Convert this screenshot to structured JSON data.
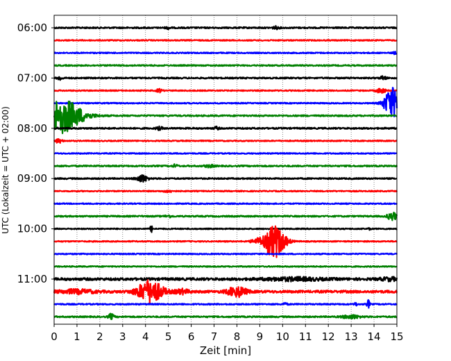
{
  "chart_data": {
    "type": "line",
    "subtype": "helicorder-seismogram",
    "xlabel": "Zeit  [min]",
    "ylabel": "UTC (Lokalzeit = UTC + 02:00)",
    "xlim": [
      0,
      15
    ],
    "x_ticks": [
      0,
      1,
      2,
      3,
      4,
      5,
      6,
      7,
      8,
      9,
      10,
      11,
      12,
      13,
      14,
      15
    ],
    "y_tick_labels": [
      "06:00",
      "07:00",
      "08:00",
      "09:00",
      "10:00",
      "11:00"
    ],
    "row_interval_minutes": 15,
    "grid": "vertical dotted at each minute",
    "trace_colors": [
      "#000000",
      "#ff0000",
      "#0000ff",
      "#008000"
    ],
    "rows": [
      {
        "start": "06:00",
        "color": "#000000",
        "amplitude": 1.0,
        "events": [
          {
            "t": 5.0,
            "a": 1.6,
            "w": 0.12
          },
          {
            "t": 9.7,
            "a": 1.8,
            "w": 0.15
          }
        ]
      },
      {
        "start": "06:15",
        "color": "#ff0000",
        "amplitude": 0.8,
        "events": []
      },
      {
        "start": "06:30",
        "color": "#0000ff",
        "amplitude": 0.8,
        "events": [
          {
            "t": 14.9,
            "a": 1.8,
            "w": 0.08
          }
        ]
      },
      {
        "start": "06:45",
        "color": "#008000",
        "amplitude": 0.9,
        "events": []
      },
      {
        "start": "07:00",
        "color": "#000000",
        "amplitude": 1.0,
        "events": [
          {
            "t": 0.25,
            "a": 3.0,
            "w": 0.1
          },
          {
            "t": 14.4,
            "a": 3.0,
            "w": 0.12
          }
        ]
      },
      {
        "start": "07:15",
        "color": "#ff0000",
        "amplitude": 0.8,
        "events": [
          {
            "t": 4.6,
            "a": 2.5,
            "w": 0.12
          },
          {
            "t": 14.3,
            "a": 3.5,
            "w": 0.2
          }
        ]
      },
      {
        "start": "07:30",
        "color": "#0000ff",
        "amplitude": 0.8,
        "events": [
          {
            "t": 14.8,
            "a": 22.0,
            "w": 0.35
          }
        ]
      },
      {
        "start": "07:45",
        "color": "#008000",
        "amplitude": 1.0,
        "events": [
          {
            "t": 0.3,
            "a": 25.0,
            "w": 0.9
          }
        ]
      },
      {
        "start": "08:00",
        "color": "#000000",
        "amplitude": 1.1,
        "events": [
          {
            "t": 4.6,
            "a": 2.0,
            "w": 0.15
          },
          {
            "t": 7.1,
            "a": 2.0,
            "w": 0.1
          }
        ]
      },
      {
        "start": "08:15",
        "color": "#ff0000",
        "amplitude": 0.8,
        "events": [
          {
            "t": 0.2,
            "a": 3.0,
            "w": 0.15
          }
        ]
      },
      {
        "start": "08:30",
        "color": "#0000ff",
        "amplitude": 0.8,
        "events": []
      },
      {
        "start": "08:45",
        "color": "#008000",
        "amplitude": 1.0,
        "events": [
          {
            "t": 5.3,
            "a": 2.2,
            "w": 0.1
          },
          {
            "t": 6.8,
            "a": 1.8,
            "w": 0.2
          }
        ]
      },
      {
        "start": "09:00",
        "color": "#000000",
        "amplitude": 1.0,
        "events": [
          {
            "t": 3.85,
            "a": 5.0,
            "w": 0.25
          }
        ]
      },
      {
        "start": "09:15",
        "color": "#ff0000",
        "amplitude": 0.8,
        "events": [
          {
            "t": 5.0,
            "a": 1.6,
            "w": 0.2
          }
        ]
      },
      {
        "start": "09:30",
        "color": "#0000ff",
        "amplitude": 0.8,
        "events": []
      },
      {
        "start": "09:45",
        "color": "#008000",
        "amplitude": 1.0,
        "events": [
          {
            "t": 14.8,
            "a": 6.0,
            "w": 0.2
          },
          {
            "t": 5.0,
            "a": 1.5,
            "w": 0.15
          }
        ]
      },
      {
        "start": "10:00",
        "color": "#000000",
        "amplitude": 0.8,
        "events": [
          {
            "t": 4.25,
            "a": 5.0,
            "w": 0.05
          },
          {
            "t": 13.8,
            "a": 2.0,
            "w": 0.05
          }
        ]
      },
      {
        "start": "10:15",
        "color": "#ff0000",
        "amplitude": 0.8,
        "events": [
          {
            "t": 9.65,
            "a": 24.0,
            "w": 0.45
          },
          {
            "t": 8.9,
            "a": 3.0,
            "w": 0.3
          }
        ]
      },
      {
        "start": "10:30",
        "color": "#0000ff",
        "amplitude": 0.8,
        "events": []
      },
      {
        "start": "10:45",
        "color": "#008000",
        "amplitude": 0.8,
        "events": []
      },
      {
        "start": "11:00",
        "color": "#000000",
        "amplitude": 1.8,
        "events": [
          {
            "t": 10.5,
            "a": 2.0,
            "w": 1.2
          },
          {
            "t": 14.7,
            "a": 2.0,
            "w": 0.4
          }
        ]
      },
      {
        "start": "11:15",
        "color": "#ff0000",
        "amplitude": 1.8,
        "events": [
          {
            "t": 4.2,
            "a": 16.0,
            "w": 0.55
          },
          {
            "t": 8.0,
            "a": 7.0,
            "w": 0.4
          },
          {
            "t": 5.6,
            "a": 3.0,
            "w": 0.3
          },
          {
            "t": 1.0,
            "a": 2.5,
            "w": 0.8
          }
        ]
      },
      {
        "start": "11:30",
        "color": "#0000ff",
        "amplitude": 0.9,
        "events": [
          {
            "t": 13.75,
            "a": 6.0,
            "w": 0.06
          },
          {
            "t": 13.2,
            "a": 3.0,
            "w": 0.05
          },
          {
            "t": 10.1,
            "a": 2.0,
            "w": 0.1
          }
        ]
      },
      {
        "start": "11:45",
        "color": "#008000",
        "amplitude": 1.0,
        "events": [
          {
            "t": 2.5,
            "a": 4.0,
            "w": 0.12
          },
          {
            "t": 13.0,
            "a": 2.5,
            "w": 0.4
          }
        ]
      }
    ]
  }
}
